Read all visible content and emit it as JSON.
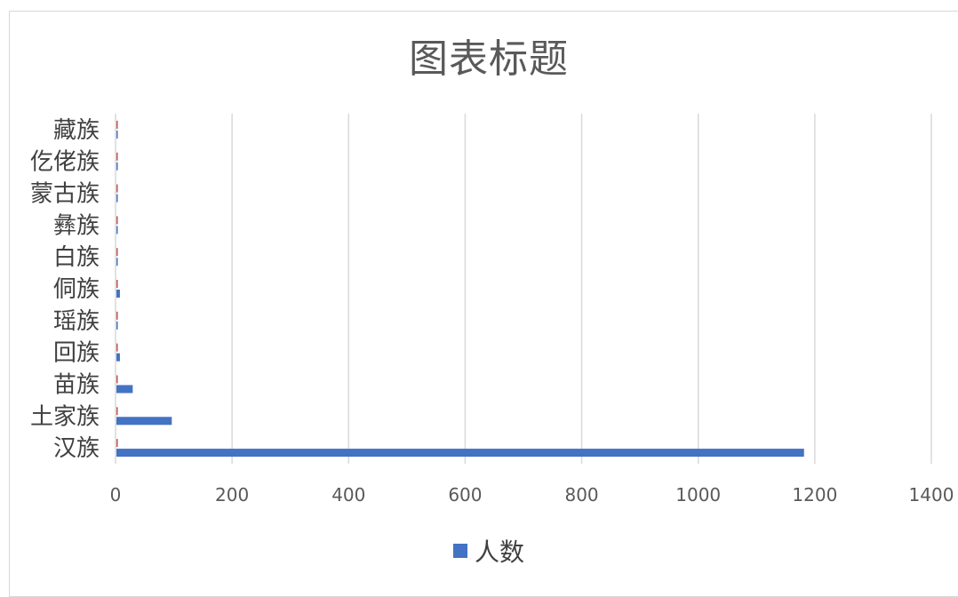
{
  "chart_data": {
    "type": "bar",
    "orientation": "horizontal",
    "title": "图表标题",
    "categories": [
      "汉族",
      "土家族",
      "苗族",
      "回族",
      "瑶族",
      "侗族",
      "白族",
      "彝族",
      "蒙古族",
      "仡佬族",
      "藏族"
    ],
    "series": [
      {
        "name": "人数",
        "color": "#4472c4",
        "values": [
          1180,
          95,
          28,
          6,
          2,
          6,
          2,
          2,
          2,
          2,
          2
        ]
      },
      {
        "name": "",
        "color": "#c0504d",
        "values": [
          1,
          1,
          1,
          1,
          1,
          1,
          1,
          1,
          1,
          1,
          1
        ]
      }
    ],
    "x_ticks": [
      "0",
      "200",
      "400",
      "600",
      "800",
      "1000",
      "1200",
      "1400"
    ],
    "xlim": [
      0,
      1400
    ],
    "grid": true,
    "legend_position": "bottom"
  }
}
